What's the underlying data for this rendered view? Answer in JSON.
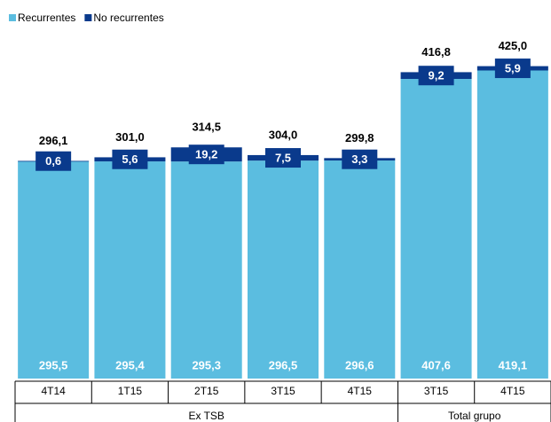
{
  "chart_data": {
    "type": "stacked_bar",
    "categories": [
      "4T14",
      "1T15",
      "2T15",
      "3T15",
      "4T15",
      "3T15",
      "4T15"
    ],
    "groups": [
      "Ex TSB",
      "Ex TSB",
      "Ex TSB",
      "Ex TSB",
      "Ex TSB",
      "Total grupo",
      "Total grupo"
    ],
    "series": [
      {
        "name": "Recurrentes",
        "color": "#5bbde0",
        "values": [
          295.5,
          295.4,
          295.3,
          296.5,
          296.6,
          407.6,
          419.1
        ],
        "value_labels": [
          "295,5",
          "295,4",
          "295,3",
          "296,5",
          "296,6",
          "407,6",
          "419,1"
        ]
      },
      {
        "name": "No recurrentes",
        "color": "#0a3a8c",
        "values": [
          0.6,
          5.6,
          19.2,
          7.5,
          3.3,
          9.2,
          5.9
        ],
        "value_labels": [
          "0,6",
          "5,6",
          "19,2",
          "7,5",
          "3,3",
          "9,2",
          "5,9"
        ]
      }
    ],
    "totals": [
      296.1,
      301.0,
      314.5,
      304.0,
      299.8,
      416.8,
      425.0
    ],
    "total_labels": [
      "296,1",
      "301,0",
      "314,5",
      "304,0",
      "299,8",
      "416,8",
      "425,0"
    ],
    "ylim": [
      0,
      480
    ],
    "legend": "top-left"
  }
}
